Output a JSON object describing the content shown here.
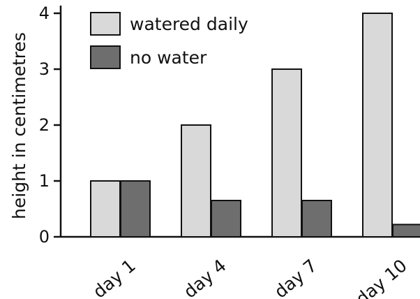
{
  "chart_data": {
    "type": "bar",
    "categories": [
      "day 1",
      "day 4",
      "day 7",
      "day 10"
    ],
    "series": [
      {
        "name": "watered daily",
        "values": [
          1,
          2,
          3,
          4
        ],
        "color": "#d9d9d9"
      },
      {
        "name": "no water",
        "values": [
          1,
          0.65,
          0.65,
          0.22
        ],
        "color": "#6e6e6e"
      }
    ],
    "ylabel": "height in centimetres",
    "xlabel": "",
    "ylim": [
      0,
      4
    ],
    "yticks": [
      0,
      1,
      2,
      3,
      4
    ],
    "grid": false,
    "legend_position": "top-left"
  }
}
